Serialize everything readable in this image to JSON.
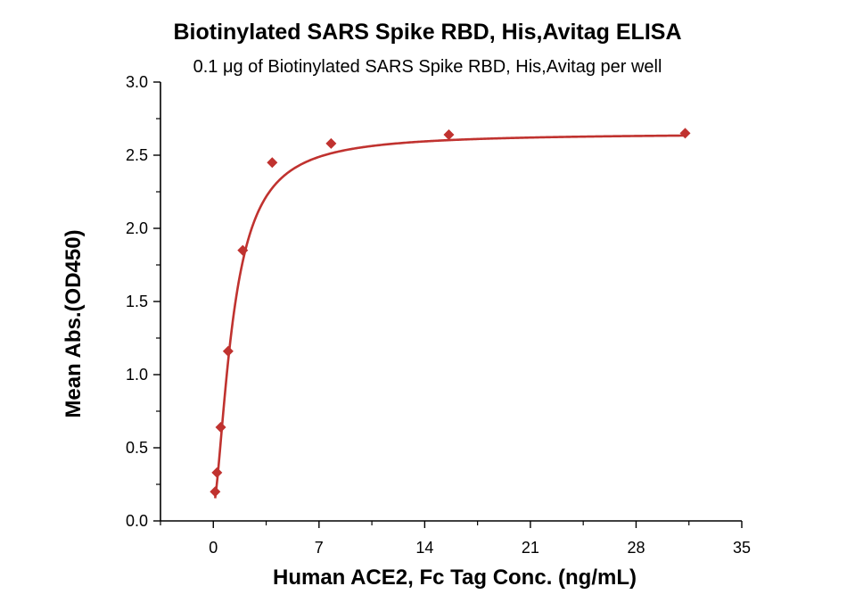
{
  "chart_data": {
    "type": "scatter",
    "title": "Biotinylated SARS Spike RBD, His,Avitag ELISA",
    "subtitle": "0.1 μg of Biotinylated SARS Spike RBD, His,Avitag per well",
    "xlabel": "Human ACE2, Fc Tag Conc. (ng/mL)",
    "ylabel": "Mean Abs.(OD450)",
    "xlim": [
      -3.5,
      35
    ],
    "ylim": [
      0,
      3.0
    ],
    "x_ticks": [
      "0",
      "7",
      "14",
      "21",
      "28",
      "35"
    ],
    "y_ticks": [
      "0.0",
      "0.5",
      "1.0",
      "1.5",
      "2.0",
      "2.5",
      "3.0"
    ],
    "marker_color": "#c0322f",
    "curve_color": "#c0322f",
    "series": [
      {
        "x": [
          0.12,
          0.24,
          0.49,
          0.98,
          1.95,
          3.9,
          7.8,
          15.6,
          31.25
        ],
        "y": [
          0.2,
          0.33,
          0.64,
          1.16,
          1.85,
          2.45,
          2.58,
          2.64,
          2.65
        ]
      }
    ],
    "fit": {
      "type": "4PL",
      "bottom": 0.1,
      "top": 2.65,
      "ec50": 1.3,
      "hill": 1.6
    }
  }
}
